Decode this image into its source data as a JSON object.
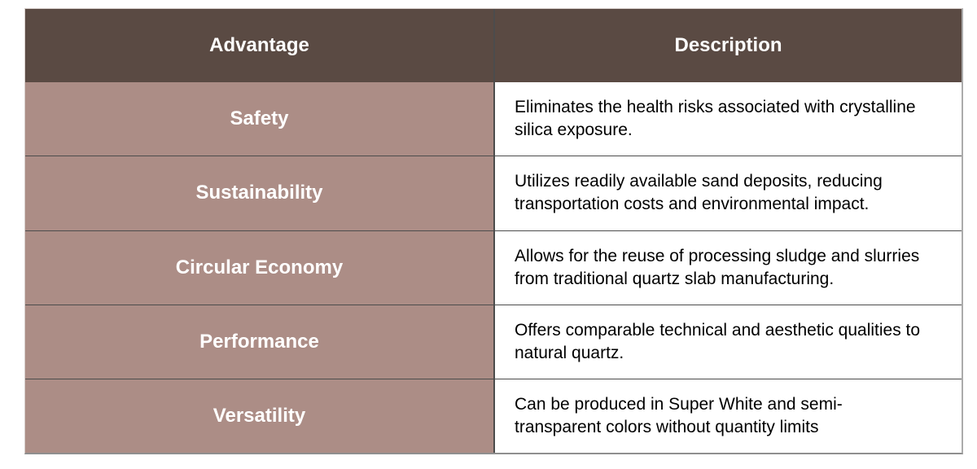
{
  "table": {
    "columns": [
      {
        "label": "Advantage"
      },
      {
        "label": "Description"
      }
    ],
    "rows": [
      {
        "advantage": "Safety",
        "description": "Eliminates the health risks associated with crystalline silica exposure.",
        "description_lines": [
          "Eliminates the health risks associated with crystalline",
          "silica exposure."
        ]
      },
      {
        "advantage": "Sustainability",
        "description": "Utilizes readily available sand deposits, reducing transportation costs and environmental impact.",
        "description_lines": [
          "Utilizes readily available sand deposits, reducing",
          "transportation costs and environmental impact."
        ]
      },
      {
        "advantage": "Circular Economy",
        "description": "Allows for the reuse of processing sludge and slurries from traditional quartz slab manufacturing.",
        "description_lines": [
          "Allows for the reuse of processing sludge and slurries",
          "from traditional quartz slab manufacturing."
        ]
      },
      {
        "advantage": "Performance",
        "description": "Offers comparable technical and aesthetic qualities to natural quartz.",
        "description_lines": [
          "Offers comparable technical and aesthetic qualities to",
          "natural quartz."
        ]
      },
      {
        "advantage": "Versatility",
        "description": "Can be produced in Super White and semi-transparent colors without quantity limits",
        "description_lines": [
          "Can be produced in Super White and semi-",
          "transparent colors without quantity limits"
        ]
      }
    ],
    "colors": {
      "header_bg": "#5A4A43",
      "label_bg": "#AC8D86",
      "header_text": "#FFFFFF",
      "body_text": "#000000",
      "grid_line": "#4C4C4C"
    }
  }
}
